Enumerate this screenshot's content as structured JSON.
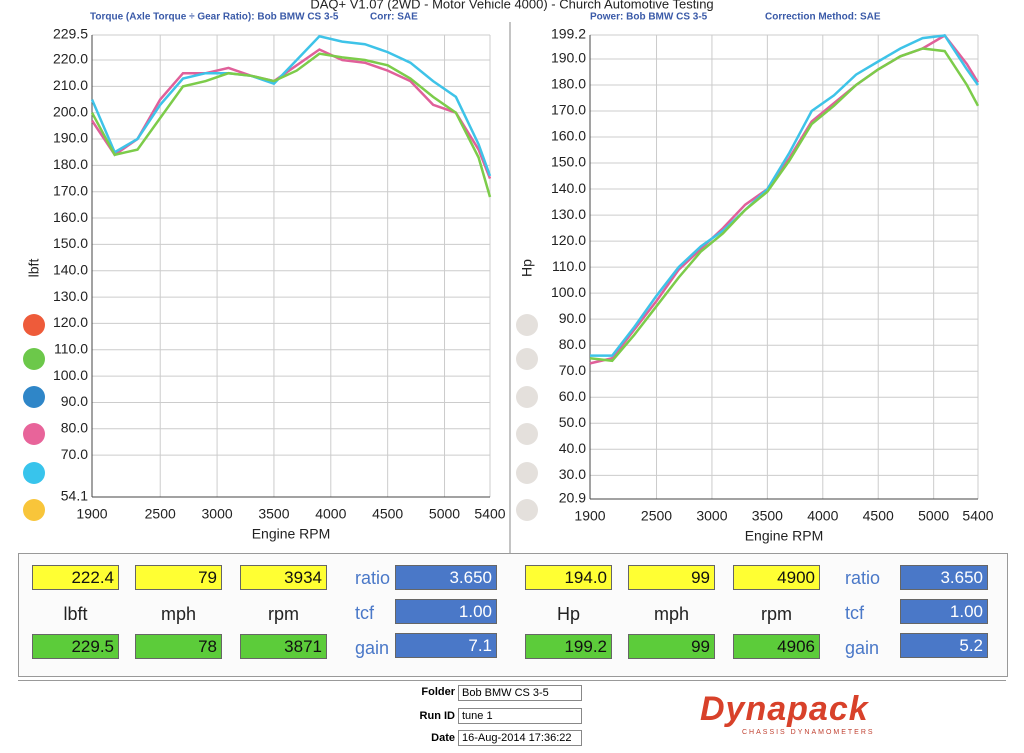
{
  "header": {
    "title": "DAQ+ V1.07 (2WD - Motor Vehicle 4000) - Church Automotive Testing"
  },
  "chart_data": [
    {
      "type": "line",
      "title": "Torque (Axle Torque ÷ Gear Ratio): Bob BMW CS 3-5",
      "note": "Corr: SAE",
      "xlabel": "Engine RPM",
      "ylabel": "lbft",
      "x": [
        1900,
        2100,
        2300,
        2500,
        2700,
        2900,
        3100,
        3300,
        3500,
        3700,
        3900,
        4100,
        4300,
        4500,
        4700,
        4900,
        5100,
        5300,
        5400
      ],
      "series": [
        {
          "color": "#e0609a",
          "values": [
            197,
            184,
            190,
            205,
            215,
            215,
            217,
            214,
            212,
            218,
            224,
            220,
            219,
            216,
            212,
            203,
            200,
            186,
            175
          ]
        },
        {
          "color": "#3ec3e8",
          "values": [
            205,
            185,
            190,
            203,
            213,
            215,
            215,
            214,
            211,
            220,
            229,
            227,
            226,
            223,
            219,
            212,
            206,
            188,
            176
          ]
        },
        {
          "color": "#7ccc4a",
          "values": [
            200,
            184,
            186,
            198,
            210,
            212,
            215,
            214,
            212,
            216,
            222.4,
            221,
            220,
            218,
            213,
            206,
            200,
            183,
            168
          ]
        }
      ],
      "xlim": [
        1900,
        5400
      ],
      "ylim": [
        54.1,
        229.5
      ],
      "xticks": [
        1900,
        2500,
        3000,
        3500,
        4000,
        4500,
        5000,
        5400
      ],
      "yticks": [
        229.5,
        {
          "value": 220,
          "label": "220.0"
        },
        {
          "value": 210,
          "label": "210.0"
        },
        {
          "value": 200,
          "label": "200.0"
        },
        {
          "value": 190,
          "label": "190.0"
        },
        {
          "value": 180,
          "label": "180.0"
        },
        {
          "value": 170,
          "label": "170.0"
        },
        {
          "value": 160,
          "label": "160.0"
        },
        {
          "value": 150,
          "label": "150.0"
        },
        {
          "value": 140,
          "label": "140.0"
        },
        {
          "value": 130,
          "label": "130.0"
        },
        {
          "value": 120,
          "label": "120.0"
        },
        {
          "value": 110,
          "label": "110.0"
        },
        {
          "value": 100,
          "label": "100.0"
        },
        {
          "value": 90,
          "label": "90.0"
        },
        {
          "value": 80,
          "label": "80.0"
        },
        {
          "value": 70,
          "label": "70.0"
        },
        54.1
      ],
      "grid": true
    },
    {
      "type": "line",
      "title": "Power: Bob BMW CS 3-5",
      "note": "Correction Method: SAE",
      "xlabel": "Engine RPM",
      "ylabel": "Hp",
      "x": [
        1900,
        2100,
        2300,
        2500,
        2700,
        2900,
        3100,
        3300,
        3500,
        3700,
        3900,
        4100,
        4300,
        4500,
        4700,
        4900,
        5100,
        5300,
        5400
      ],
      "series": [
        {
          "color": "#e0609a",
          "values": [
            73,
            75,
            86,
            97,
            109,
            117,
            125,
            134,
            140,
            152,
            166,
            173,
            180,
            186,
            191,
            194,
            199,
            188,
            181
          ]
        },
        {
          "color": "#3ec3e8",
          "values": [
            76,
            76,
            87,
            99,
            110,
            118,
            124,
            132,
            140,
            154,
            170,
            176,
            184,
            189,
            194,
            198,
            199,
            186,
            180
          ]
        },
        {
          "color": "#7ccc4a",
          "values": [
            75,
            74,
            84,
            95,
            106,
            116,
            123,
            132,
            139,
            151,
            165,
            172,
            180,
            186,
            191,
            194,
            193,
            180,
            172
          ]
        }
      ],
      "xlim": [
        1900,
        5400
      ],
      "ylim": [
        20.9,
        199.2
      ],
      "xticks": [
        1900,
        2500,
        3000,
        3500,
        4000,
        4500,
        5000,
        5400
      ],
      "yticks": [
        199.2,
        {
          "value": 190,
          "label": "190.0"
        },
        {
          "value": 180,
          "label": "180.0"
        },
        {
          "value": 170,
          "label": "170.0"
        },
        {
          "value": 160,
          "label": "160.0"
        },
        {
          "value": 150,
          "label": "150.0"
        },
        {
          "value": 140,
          "label": "140.0"
        },
        {
          "value": 130,
          "label": "130.0"
        },
        {
          "value": 120,
          "label": "120.0"
        },
        {
          "value": 110,
          "label": "110.0"
        },
        {
          "value": 100,
          "label": "100.0"
        },
        {
          "value": 90,
          "label": "90.0"
        },
        {
          "value": 80,
          "label": "80.0"
        },
        {
          "value": 70,
          "label": "70.0"
        },
        {
          "value": 60,
          "label": "60.0"
        },
        {
          "value": 50,
          "label": "50.0"
        },
        {
          "value": 40,
          "label": "40.0"
        },
        {
          "value": 30,
          "label": "30.0"
        },
        20.9
      ],
      "grid": true
    }
  ],
  "readouts": [
    {
      "current": [
        "222.4",
        "79",
        "3934"
      ],
      "units": [
        "lbft",
        "mph",
        "rpm"
      ],
      "peak": [
        "229.5",
        "78",
        "3871"
      ],
      "settings": [
        "ratio",
        "tcf",
        "gain"
      ],
      "setting_values": [
        "3.650",
        "1.00",
        "7.1"
      ]
    },
    {
      "current": [
        "194.0",
        "99",
        "4900"
      ],
      "units": [
        "Hp",
        "mph",
        "rpm"
      ],
      "peak": [
        "199.2",
        "99",
        "4906"
      ],
      "settings": [
        "ratio",
        "tcf",
        "gain"
      ],
      "setting_values": [
        "3.650",
        "1.00",
        "5.2"
      ]
    }
  ],
  "footer": {
    "labels": [
      "Folder",
      "Run ID",
      "Date"
    ],
    "values": [
      "Bob BMW CS 3-5",
      "tune 1",
      "16-Aug-2014 17:36:22"
    ],
    "logo": "Dynapack",
    "logo_tagline": "CHASSIS DYNAMOMETERS"
  }
}
